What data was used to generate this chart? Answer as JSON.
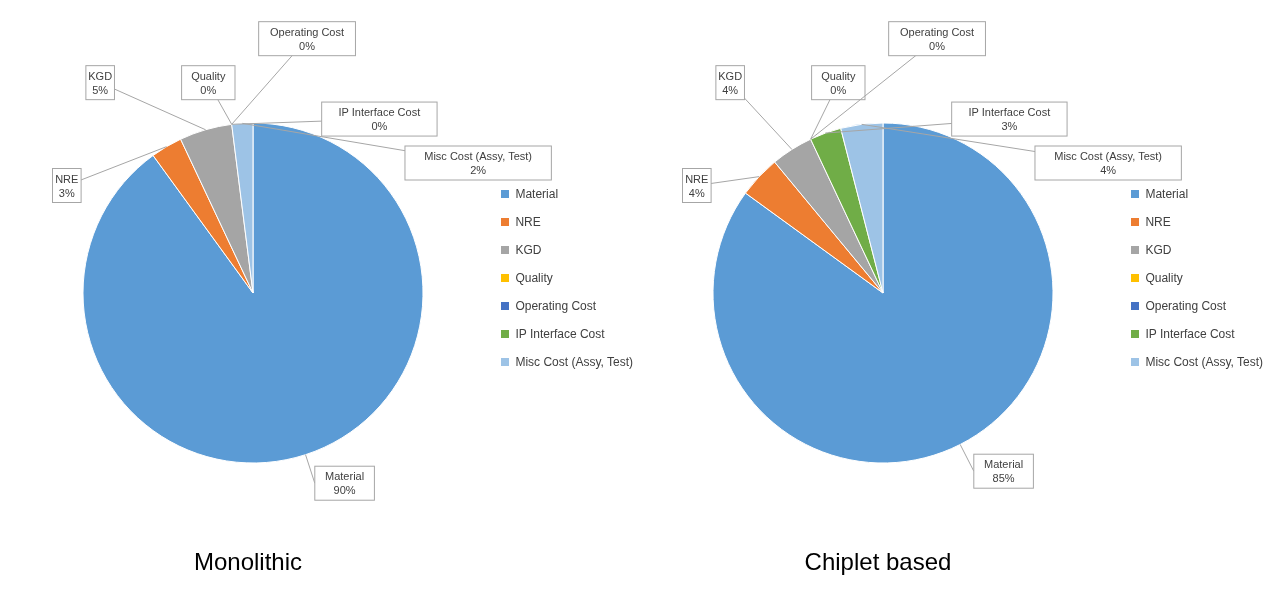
{
  "chart_data": [
    {
      "type": "pie",
      "title": "Monolithic",
      "categories": [
        "Material",
        "NRE",
        "KGD",
        "Quality",
        "Operating Cost",
        "IP Interface Cost",
        "Misc Cost (Assy, Test)"
      ],
      "values": [
        90,
        3,
        5,
        0,
        0,
        0,
        2
      ],
      "value_labels": [
        "90%",
        "3%",
        "5%",
        "0%",
        "0%",
        "0%",
        "2%"
      ],
      "colors": [
        "#5b9bd5",
        "#ed7d31",
        "#a5a5a5",
        "#ffc000",
        "#4472c4",
        "#70ad47",
        "#9dc3e6"
      ],
      "legend": "right"
    },
    {
      "type": "pie",
      "title": "Chiplet based",
      "categories": [
        "Material",
        "NRE",
        "KGD",
        "Quality",
        "Operating Cost",
        "IP Interface Cost",
        "Misc Cost (Assy, Test)"
      ],
      "values": [
        85,
        4,
        4,
        0,
        0,
        3,
        4
      ],
      "value_labels": [
        "85%",
        "4%",
        "4%",
        "0%",
        "0%",
        "3%",
        "4%"
      ],
      "colors": [
        "#5b9bd5",
        "#ed7d31",
        "#a5a5a5",
        "#ffc000",
        "#4472c4",
        "#70ad47",
        "#9dc3e6"
      ],
      "legend": "right"
    }
  ]
}
